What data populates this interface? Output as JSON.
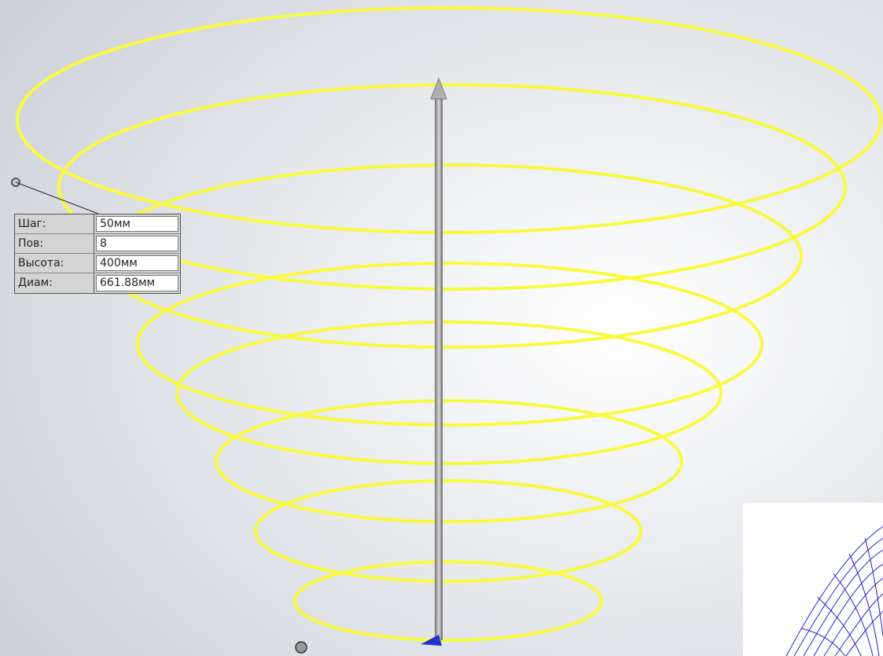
{
  "callout": {
    "rows": [
      {
        "label": "Шаг:",
        "value": "50мм"
      },
      {
        "label": "Пов:",
        "value": "8"
      },
      {
        "label": "Высота:",
        "value": "400мм"
      },
      {
        "label": "Диам:",
        "value": "661.88мм"
      }
    ]
  }
}
